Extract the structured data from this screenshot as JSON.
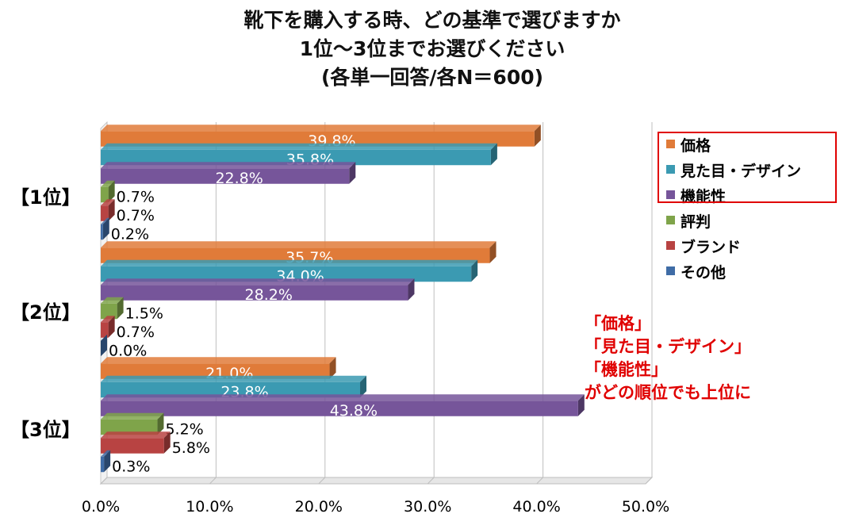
{
  "title": {
    "line1": "靴下を購入する時、どの基準で選びますか",
    "line2": "1位～3位までお選びください",
    "line3": "(各単一回答/各N＝600)"
  },
  "callout": {
    "line1": "「価格」",
    "line2": "「見た目・デザイン」",
    "line3": "「機能性」",
    "line4": "がどの順位でも上位に"
  },
  "colors": {
    "price": "#E07B39",
    "design": "#3B9AB2",
    "function": "#76559A",
    "review": "#7FA44A",
    "brand": "#B84342",
    "other": "#3F6CA6",
    "highlight": "#E00000"
  },
  "chart_data": {
    "type": "bar",
    "orientation": "horizontal",
    "categories": [
      "【1位】",
      "【2位】",
      "【3位】"
    ],
    "series": [
      {
        "name": "価格",
        "values": [
          39.8,
          35.7,
          21.0
        ],
        "labels": [
          "39.8%",
          "35.7%",
          "21.0%"
        ]
      },
      {
        "name": "見た目・デザイン",
        "values": [
          35.8,
          34.0,
          23.8
        ],
        "labels": [
          "35.8%",
          "34.0%",
          "23.8%"
        ]
      },
      {
        "name": "機能性",
        "values": [
          22.8,
          28.2,
          43.8
        ],
        "labels": [
          "22.8%",
          "28.2%",
          "43.8%"
        ]
      },
      {
        "name": "評判",
        "values": [
          0.7,
          1.5,
          5.2
        ],
        "labels": [
          "0.7%",
          "1.5%",
          "5.2%"
        ]
      },
      {
        "name": "ブランド",
        "values": [
          0.7,
          0.7,
          5.8
        ],
        "labels": [
          "0.7%",
          "0.7%",
          "5.8%"
        ]
      },
      {
        "name": "その他",
        "values": [
          0.2,
          0.0,
          0.3
        ],
        "labels": [
          "0.2%",
          "0.0%",
          "0.3%"
        ]
      }
    ],
    "xlim": [
      0,
      50
    ],
    "xticks": [
      "0.0%",
      "10.0%",
      "20.0%",
      "30.0%",
      "40.0%",
      "50.0%"
    ],
    "grid": true,
    "legend_position": "right"
  }
}
